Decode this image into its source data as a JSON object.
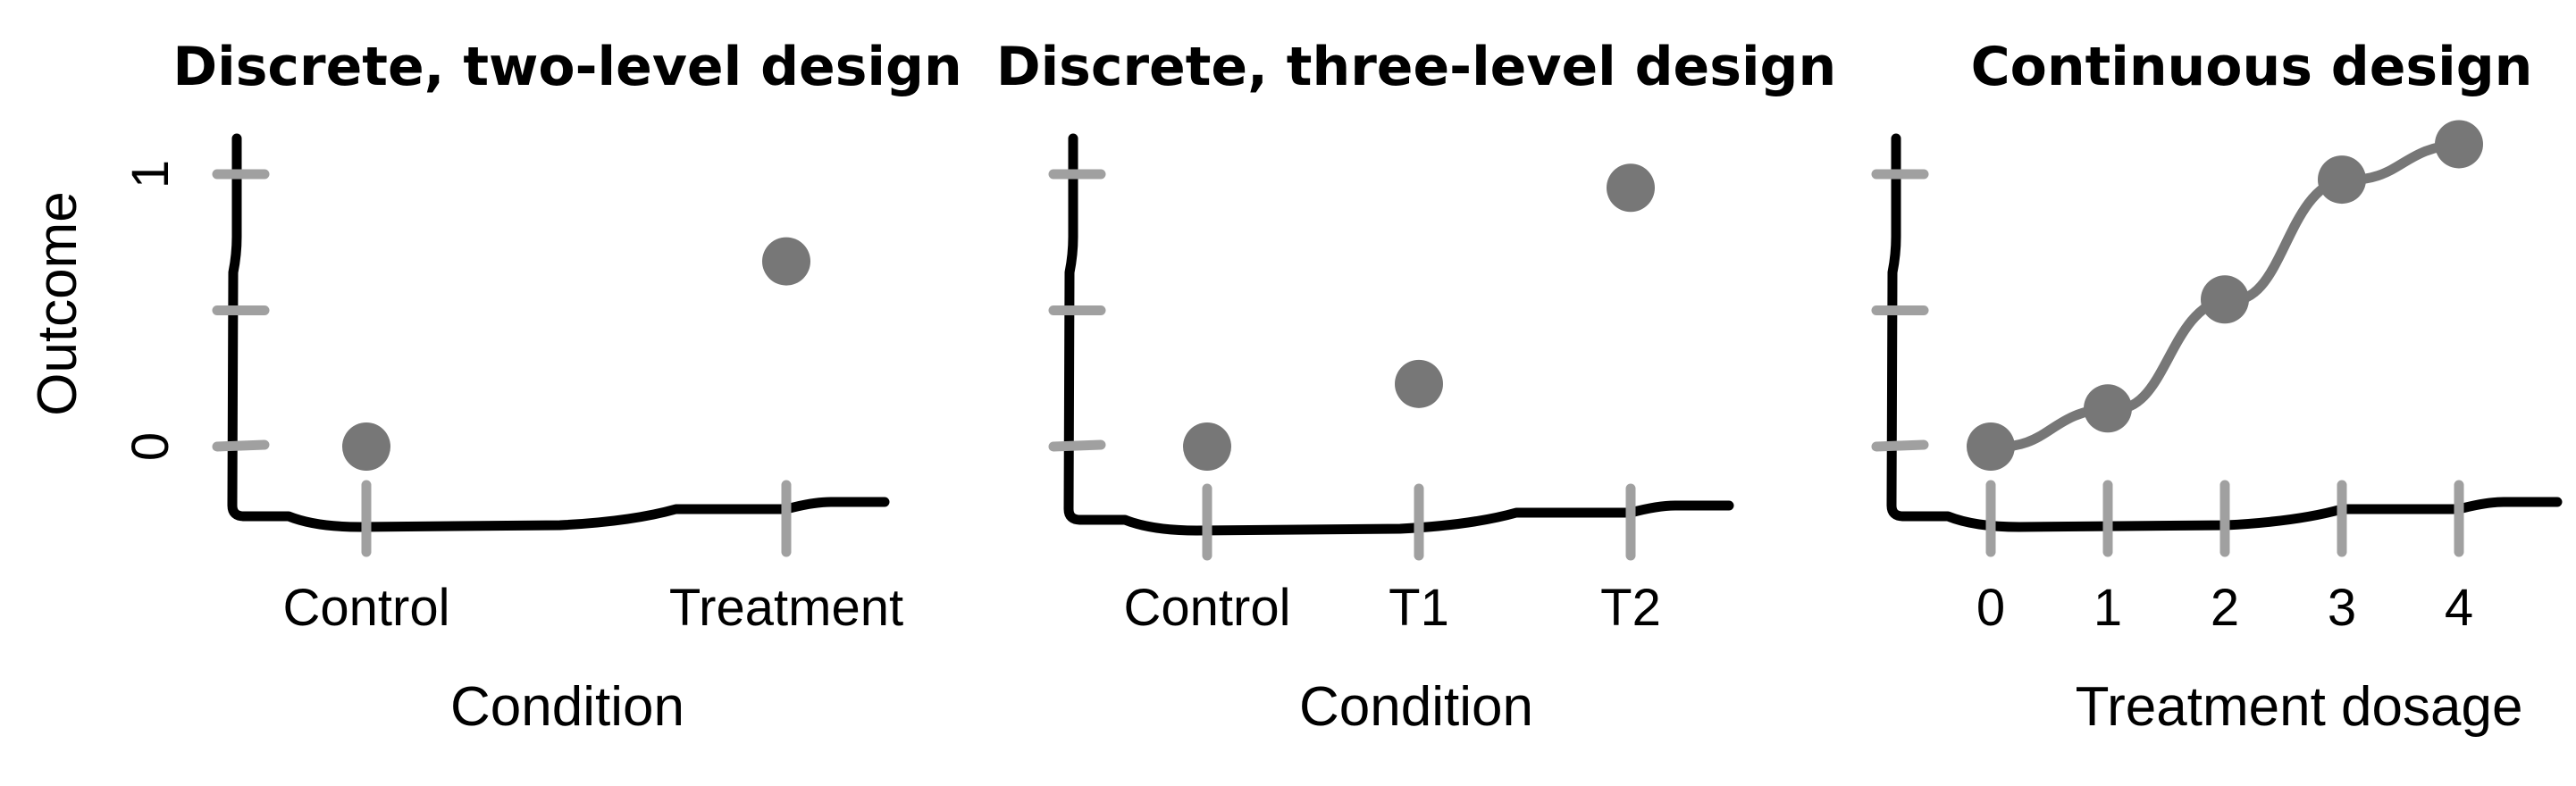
{
  "chart_data": [
    {
      "type": "scatter",
      "title": "Discrete, two-level design",
      "xlabel": "Condition",
      "ylabel": "Outcome",
      "categories": [
        "Control",
        "Treatment"
      ],
      "values": [
        0,
        0.68
      ],
      "ylim": [
        0,
        1
      ],
      "yticks": [
        "0",
        "",
        "1"
      ],
      "grid": false,
      "legend": "none"
    },
    {
      "type": "scatter",
      "title": "Discrete, three-level design",
      "xlabel": "Condition",
      "ylabel": "",
      "categories": [
        "Control",
        "T1",
        "T2"
      ],
      "values": [
        0,
        0.23,
        0.95
      ],
      "ylim": [
        0,
        1
      ],
      "yticks": [
        "",
        "",
        ""
      ],
      "grid": false,
      "legend": "none"
    },
    {
      "type": "line",
      "title": "Continuous design",
      "xlabel": "Treatment dosage",
      "ylabel": "",
      "categories": [
        "0",
        "1",
        "2",
        "3",
        "4"
      ],
      "values": [
        0,
        0.14,
        0.54,
        0.98,
        1.11
      ],
      "ylim": [
        0,
        1
      ],
      "yticks": [
        "",
        "",
        ""
      ],
      "grid": false,
      "legend": "none"
    }
  ],
  "colors": {
    "point": "#777777",
    "line": "#777777",
    "axis": "#000000",
    "tick": "#a0a0a0"
  }
}
